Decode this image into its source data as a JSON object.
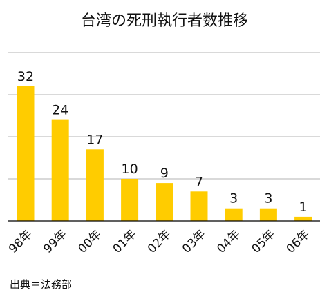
{
  "chart_data": {
    "type": "bar",
    "title": "台湾の死刑執行者数推移",
    "categories": [
      "98年",
      "99年",
      "00年",
      "01年",
      "02年",
      "03年",
      "04年",
      "05年",
      "06年"
    ],
    "values": [
      32,
      24,
      17,
      10,
      9,
      7,
      3,
      3,
      1
    ],
    "ylim": [
      0,
      40
    ],
    "grid": true,
    "bar_color": "#FFCC00",
    "grid_color": "#b3b3b3",
    "axis_color": "#000000"
  },
  "source": "出典＝法務部"
}
